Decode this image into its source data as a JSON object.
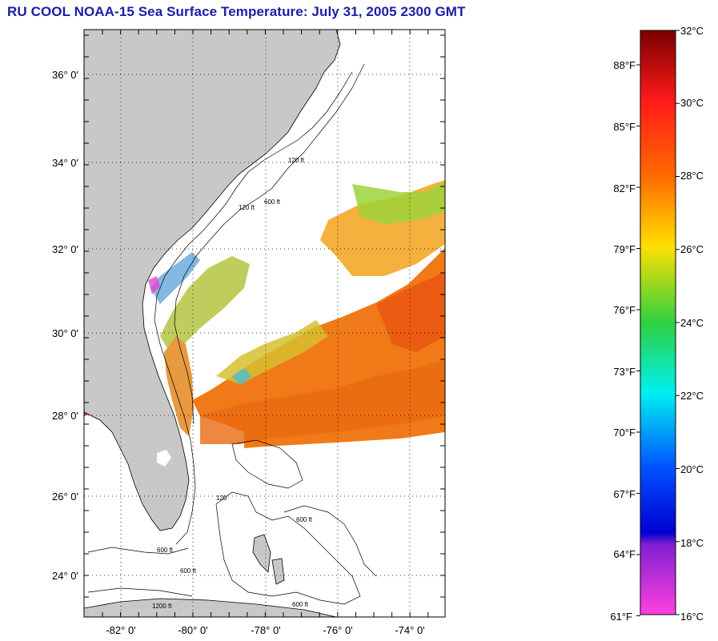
{
  "title": "RU COOL  NOAA-15  Sea Surface Temperature:  July 31, 2005 2300 GMT",
  "map": {
    "lat_labels": [
      "36° 0'",
      "34° 0'",
      "32° 0'",
      "30° 0'",
      "28° 0'",
      "26° 0'",
      "24° 0'"
    ],
    "lon_labels": [
      "-82° 0'",
      "-80° 0'",
      "-78° 0'",
      "-76° 0'",
      "-74° 0'"
    ],
    "isobath_labels": [
      "120 ft",
      "600 ft",
      "120 ft",
      "600 ft",
      "120",
      "600 ft",
      "600 ft",
      "1200 ft",
      "600 ft"
    ],
    "colors": {
      "land": "#c8c8c8",
      "no_data": "#ffffff",
      "grid": "#000000"
    }
  },
  "colorbar": {
    "celsius_labels": [
      "32°C",
      "30°C",
      "28°C",
      "26°C",
      "24°C",
      "22°C",
      "20°C",
      "18°C",
      "16°C"
    ],
    "fahrenheit_labels": [
      "88°F",
      "85°F",
      "82°F",
      "79°F",
      "76°F",
      "73°F",
      "70°F",
      "67°F",
      "64°F",
      "61°F"
    ],
    "gradient_stops": [
      "#7a0000",
      "#ff1a1a",
      "#ff6a00",
      "#ffe000",
      "#30d040",
      "#00f0f0",
      "#0050ff",
      "#0000d0",
      "#8020d0",
      "#ff40e0"
    ]
  }
}
